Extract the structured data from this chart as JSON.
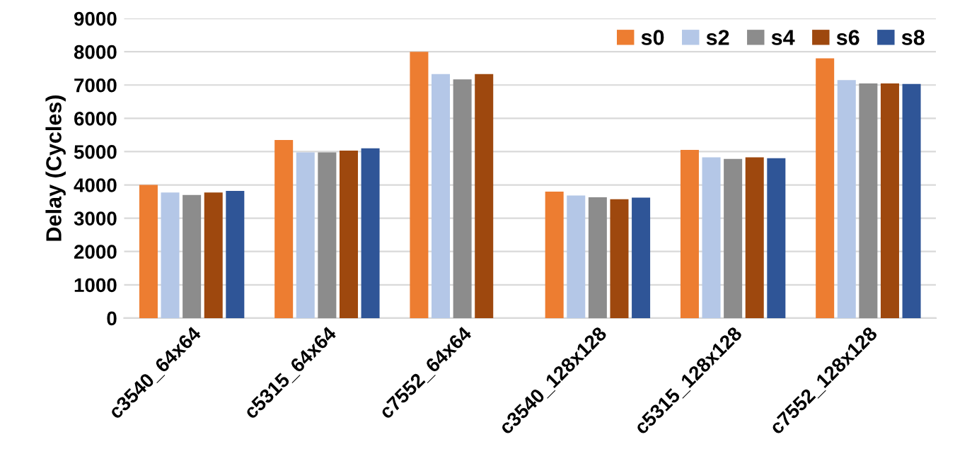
{
  "chart_data": {
    "type": "bar",
    "ylabel": "Delay (Cycles)",
    "categories": [
      "c3540_64x64",
      "c5315_64x64",
      "c7552_64x64",
      "c3540_128x128",
      "c5315_128x128",
      "c7552_128x128"
    ],
    "series": [
      {
        "name": "s0",
        "color": "#ed7d31",
        "values": [
          4000,
          5350,
          8000,
          3800,
          5050,
          7800
        ]
      },
      {
        "name": "s2",
        "color": "#b4c7e7",
        "values": [
          3770,
          4980,
          7330,
          3680,
          4830,
          7150
        ]
      },
      {
        "name": "s4",
        "color": "#8c8c8c",
        "values": [
          3700,
          4980,
          7170,
          3630,
          4780,
          7050
        ]
      },
      {
        "name": "s6",
        "color": "#9e480e",
        "values": [
          3770,
          5030,
          7330,
          3570,
          4830,
          7050
        ]
      },
      {
        "name": "s8",
        "color": "#2f5597",
        "values": [
          3820,
          5100,
          null,
          3620,
          4800,
          7030
        ]
      }
    ],
    "ylim": [
      0,
      9000
    ],
    "yticks": [
      0,
      1000,
      2000,
      3000,
      4000,
      5000,
      6000,
      7000,
      8000,
      9000
    ],
    "grid": "y",
    "legend": "top right"
  }
}
